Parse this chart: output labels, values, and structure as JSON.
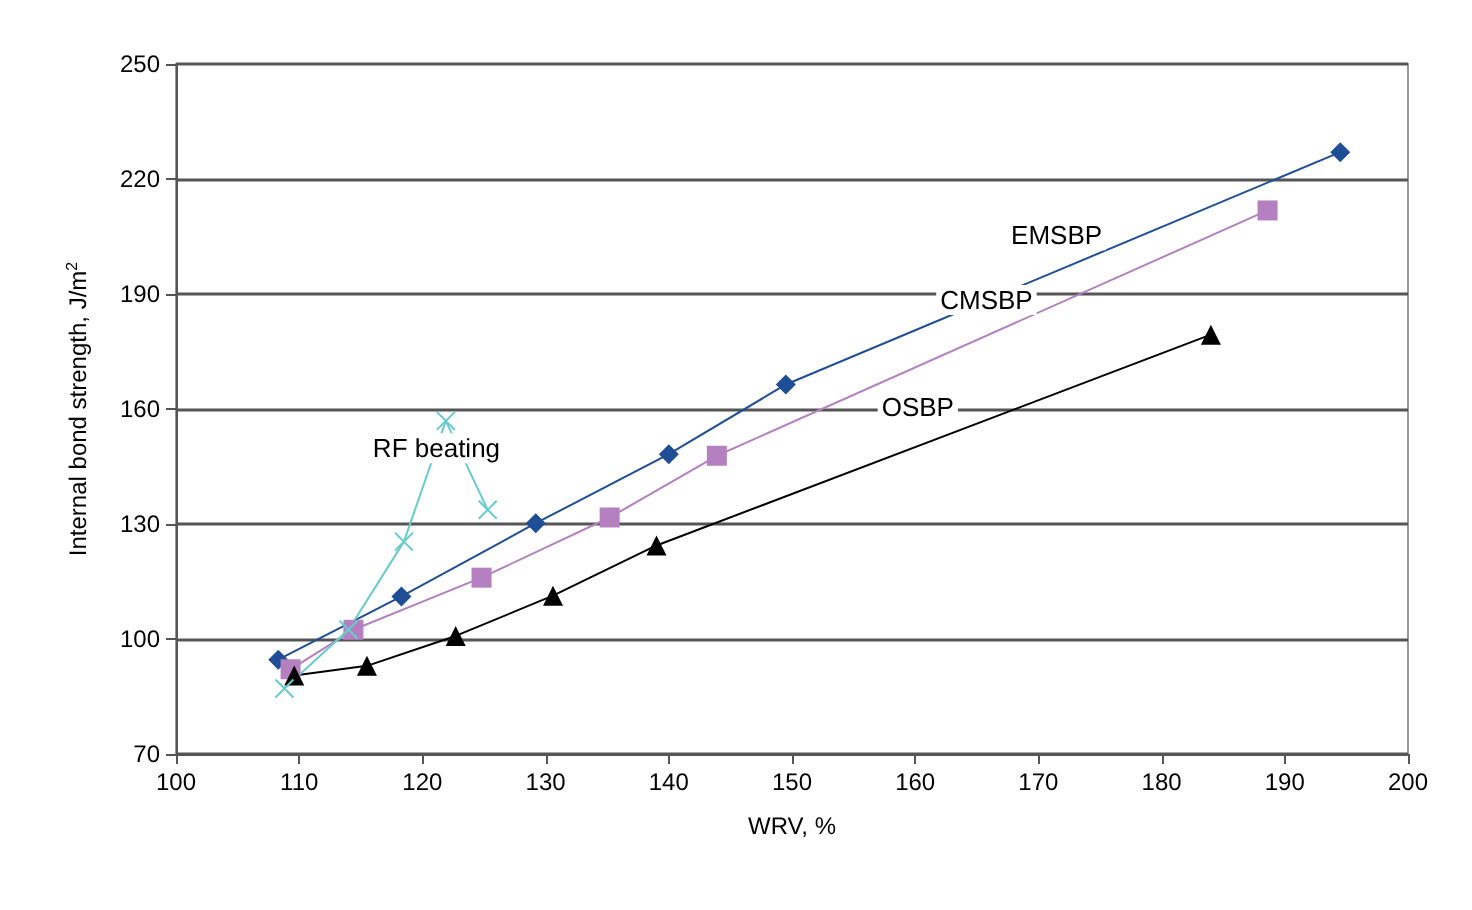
{
  "chart_data": {
    "type": "line",
    "xlabel": "WRV, %",
    "ylabel": "Internal bond strength, J/m$^{2}$",
    "xlim": [
      100,
      200
    ],
    "xticks": [
      100,
      110,
      120,
      130,
      140,
      150,
      160,
      170,
      180,
      190,
      200
    ],
    "ylim": [
      70,
      250
    ],
    "yticks": [
      70,
      100,
      130,
      160,
      190,
      220,
      250
    ],
    "grid": "y",
    "legend": false,
    "line_style": "solid",
    "series": [
      {
        "name": "EMSBP",
        "color": "#1f4e96",
        "marker": "diamond",
        "x": [
          108.3,
          118.3,
          129.2,
          140,
          149.5,
          194.5
        ],
        "values": [
          94.6,
          111.1,
          130.2,
          148.2,
          166.4,
          227
        ]
      },
      {
        "name": "CMSBP",
        "color": "#b580bf",
        "marker": "square",
        "x": [
          109.3,
          114.4,
          124.8,
          135.2,
          143.9,
          188.6
        ],
        "values": [
          92.1,
          102.4,
          116,
          131.7,
          147.8,
          211.8
        ]
      },
      {
        "name": "OSBP",
        "color": "#000000",
        "marker": "triangle",
        "x": [
          109.6,
          115.5,
          122.7,
          130.6,
          139,
          184
        ],
        "values": [
          90.5,
          93,
          100.8,
          111.3,
          124.4,
          179.4
        ]
      },
      {
        "name": "RF beating",
        "color": "#66cccc",
        "marker": "cross",
        "x": [
          108.8,
          114,
          118.5,
          121.9,
          125.3
        ],
        "values": [
          87.1,
          102.4,
          125.4,
          156.9,
          133.7
        ]
      }
    ]
  }
}
